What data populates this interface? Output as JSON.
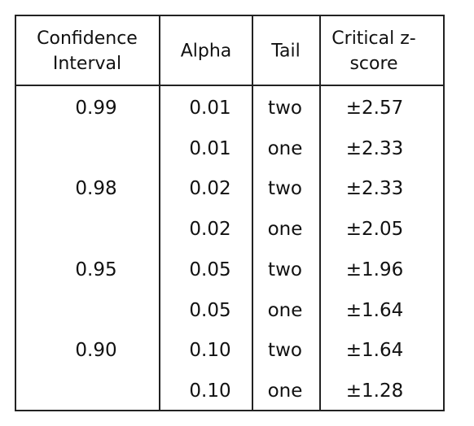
{
  "table": {
    "headers": [
      "Confidence Interval",
      "Alpha",
      "Tail",
      "Critical z-score"
    ],
    "groups": [
      {
        "confidence": "0.99",
        "rows": [
          [
            "0.01",
            "two",
            "±2.57"
          ],
          [
            "0.01",
            "one",
            "±2.33"
          ]
        ]
      },
      {
        "confidence": "0.98",
        "rows": [
          [
            "0.02",
            "two",
            "±2.33"
          ],
          [
            "0.02",
            "one",
            "±2.05"
          ]
        ]
      },
      {
        "confidence": "0.95",
        "rows": [
          [
            "0.05",
            "two",
            "±1.96"
          ],
          [
            "0.05",
            "one",
            "±1.64"
          ]
        ]
      },
      {
        "confidence": "0.90",
        "rows": [
          [
            "0.10",
            "two",
            "±1.64"
          ],
          [
            "0.10",
            "one",
            "±1.28"
          ]
        ]
      }
    ]
  }
}
